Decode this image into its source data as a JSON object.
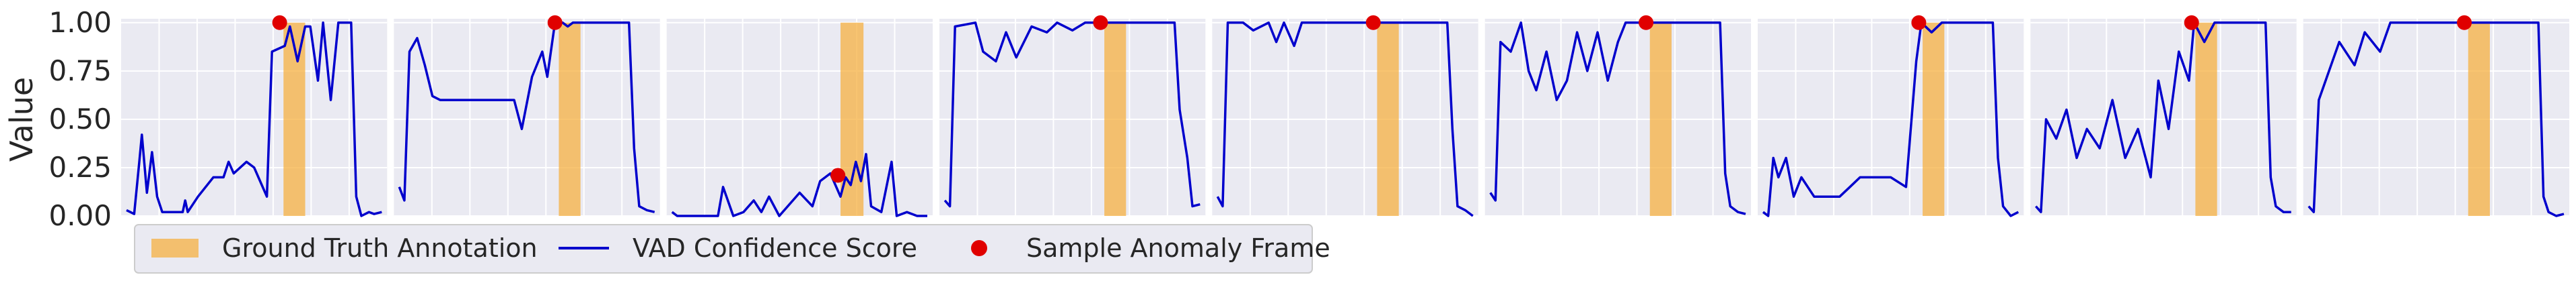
{
  "chart_data": {
    "type": "line",
    "ylabel": "Value",
    "ylim": [
      0,
      1.02
    ],
    "yticks": [
      0.0,
      0.25,
      0.5,
      0.75,
      1.0
    ],
    "ytick_labels": [
      "0.00",
      "0.25",
      "0.50",
      "0.75",
      "1.00"
    ],
    "grid": true,
    "legend_position": "bottom-left",
    "legend": {
      "annotation": "Ground Truth Annotation",
      "line": "VAD Confidence Score",
      "point": "Sample Anomaly Frame"
    },
    "colors": {
      "background": "#eaeaf2",
      "grid": "#ffffff",
      "line": "#0000cc",
      "annotation": "#f5b042",
      "point": "#e00000"
    },
    "panels": [
      {
        "annotation": [
          0.615,
          0.7
        ],
        "point": [
          0.6,
          1.0
        ],
        "line": [
          [
            0.0,
            0.03
          ],
          [
            0.03,
            0.01
          ],
          [
            0.05,
            0.28
          ],
          [
            0.06,
            0.42
          ],
          [
            0.08,
            0.12
          ],
          [
            0.1,
            0.33
          ],
          [
            0.12,
            0.1
          ],
          [
            0.14,
            0.02
          ],
          [
            0.2,
            0.02
          ],
          [
            0.22,
            0.02
          ],
          [
            0.23,
            0.08
          ],
          [
            0.24,
            0.02
          ],
          [
            0.28,
            0.1
          ],
          [
            0.34,
            0.2
          ],
          [
            0.38,
            0.2
          ],
          [
            0.4,
            0.28
          ],
          [
            0.42,
            0.22
          ],
          [
            0.47,
            0.28
          ],
          [
            0.5,
            0.25
          ],
          [
            0.55,
            0.1
          ],
          [
            0.57,
            0.85
          ],
          [
            0.62,
            0.88
          ],
          [
            0.64,
            0.98
          ],
          [
            0.67,
            0.8
          ],
          [
            0.7,
            0.98
          ],
          [
            0.72,
            0.98
          ],
          [
            0.75,
            0.7
          ],
          [
            0.77,
            1.0
          ],
          [
            0.8,
            0.6
          ],
          [
            0.83,
            1.0
          ],
          [
            0.88,
            1.0
          ],
          [
            0.9,
            0.1
          ],
          [
            0.92,
            0.0
          ],
          [
            0.95,
            0.02
          ],
          [
            0.97,
            0.01
          ],
          [
            1.0,
            0.02
          ]
        ]
      },
      {
        "annotation": [
          0.625,
          0.71
        ],
        "point": [
          0.61,
          1.0
        ],
        "line": [
          [
            0.0,
            0.15
          ],
          [
            0.02,
            0.08
          ],
          [
            0.04,
            0.85
          ],
          [
            0.07,
            0.92
          ],
          [
            0.1,
            0.78
          ],
          [
            0.13,
            0.62
          ],
          [
            0.16,
            0.6
          ],
          [
            0.45,
            0.6
          ],
          [
            0.48,
            0.45
          ],
          [
            0.52,
            0.72
          ],
          [
            0.56,
            0.85
          ],
          [
            0.58,
            0.72
          ],
          [
            0.61,
            1.0
          ],
          [
            0.64,
            1.0
          ],
          [
            0.66,
            0.98
          ],
          [
            0.68,
            1.0
          ],
          [
            0.9,
            1.0
          ],
          [
            0.92,
            0.35
          ],
          [
            0.94,
            0.05
          ],
          [
            0.97,
            0.03
          ],
          [
            1.0,
            0.02
          ]
        ]
      },
      {
        "annotation": [
          0.66,
          0.75
        ],
        "point": [
          0.65,
          0.21
        ],
        "line": [
          [
            0.0,
            0.02
          ],
          [
            0.02,
            0.0
          ],
          [
            0.1,
            0.0
          ],
          [
            0.18,
            0.0
          ],
          [
            0.2,
            0.15
          ],
          [
            0.24,
            0.0
          ],
          [
            0.28,
            0.02
          ],
          [
            0.32,
            0.08
          ],
          [
            0.35,
            0.02
          ],
          [
            0.38,
            0.1
          ],
          [
            0.42,
            0.0
          ],
          [
            0.5,
            0.12
          ],
          [
            0.55,
            0.05
          ],
          [
            0.58,
            0.18
          ],
          [
            0.62,
            0.22
          ],
          [
            0.66,
            0.1
          ],
          [
            0.68,
            0.2
          ],
          [
            0.7,
            0.16
          ],
          [
            0.72,
            0.28
          ],
          [
            0.74,
            0.18
          ],
          [
            0.76,
            0.32
          ],
          [
            0.78,
            0.05
          ],
          [
            0.82,
            0.02
          ],
          [
            0.86,
            0.28
          ],
          [
            0.88,
            0.0
          ],
          [
            0.92,
            0.02
          ],
          [
            0.96,
            0.0
          ],
          [
            1.0,
            0.0
          ]
        ]
      },
      {
        "annotation": [
          0.625,
          0.71
        ],
        "point": [
          0.61,
          1.0
        ],
        "line": [
          [
            0.0,
            0.08
          ],
          [
            0.02,
            0.05
          ],
          [
            0.04,
            0.98
          ],
          [
            0.12,
            1.0
          ],
          [
            0.15,
            0.85
          ],
          [
            0.2,
            0.8
          ],
          [
            0.24,
            0.95
          ],
          [
            0.28,
            0.82
          ],
          [
            0.31,
            0.9
          ],
          [
            0.34,
            0.98
          ],
          [
            0.4,
            0.95
          ],
          [
            0.44,
            1.0
          ],
          [
            0.5,
            0.96
          ],
          [
            0.55,
            1.0
          ],
          [
            0.9,
            1.0
          ],
          [
            0.92,
            0.55
          ],
          [
            0.95,
            0.3
          ],
          [
            0.97,
            0.05
          ],
          [
            1.0,
            0.06
          ]
        ]
      },
      {
        "annotation": [
          0.625,
          0.71
        ],
        "point": [
          0.61,
          1.0
        ],
        "line": [
          [
            0.0,
            0.1
          ],
          [
            0.02,
            0.05
          ],
          [
            0.04,
            1.0
          ],
          [
            0.1,
            1.0
          ],
          [
            0.14,
            0.96
          ],
          [
            0.2,
            1.0
          ],
          [
            0.23,
            0.9
          ],
          [
            0.26,
            1.0
          ],
          [
            0.3,
            0.88
          ],
          [
            0.33,
            1.0
          ],
          [
            0.9,
            1.0
          ],
          [
            0.92,
            0.45
          ],
          [
            0.94,
            0.05
          ],
          [
            0.97,
            0.03
          ],
          [
            1.0,
            0.0
          ]
        ]
      },
      {
        "annotation": [
          0.625,
          0.71
        ],
        "point": [
          0.61,
          1.0
        ],
        "line": [
          [
            0.0,
            0.12
          ],
          [
            0.02,
            0.08
          ],
          [
            0.04,
            0.9
          ],
          [
            0.08,
            0.85
          ],
          [
            0.12,
            1.0
          ],
          [
            0.15,
            0.75
          ],
          [
            0.18,
            0.65
          ],
          [
            0.22,
            0.85
          ],
          [
            0.26,
            0.6
          ],
          [
            0.3,
            0.7
          ],
          [
            0.34,
            0.95
          ],
          [
            0.38,
            0.75
          ],
          [
            0.42,
            0.95
          ],
          [
            0.46,
            0.7
          ],
          [
            0.5,
            0.9
          ],
          [
            0.53,
            1.0
          ],
          [
            0.9,
            1.0
          ],
          [
            0.92,
            0.22
          ],
          [
            0.94,
            0.05
          ],
          [
            0.97,
            0.02
          ],
          [
            1.0,
            0.01
          ]
        ]
      },
      {
        "annotation": [
          0.625,
          0.71
        ],
        "point": [
          0.61,
          1.0
        ],
        "line": [
          [
            0.0,
            0.02
          ],
          [
            0.02,
            0.0
          ],
          [
            0.04,
            0.3
          ],
          [
            0.06,
            0.2
          ],
          [
            0.09,
            0.3
          ],
          [
            0.12,
            0.1
          ],
          [
            0.15,
            0.2
          ],
          [
            0.2,
            0.1
          ],
          [
            0.3,
            0.1
          ],
          [
            0.34,
            0.15
          ],
          [
            0.38,
            0.2
          ],
          [
            0.5,
            0.2
          ],
          [
            0.56,
            0.15
          ],
          [
            0.6,
            0.8
          ],
          [
            0.62,
            1.0
          ],
          [
            0.66,
            0.95
          ],
          [
            0.7,
            1.0
          ],
          [
            0.9,
            1.0
          ],
          [
            0.92,
            0.3
          ],
          [
            0.94,
            0.05
          ],
          [
            0.97,
            0.0
          ],
          [
            1.0,
            0.02
          ]
        ]
      },
      {
        "annotation": [
          0.625,
          0.71
        ],
        "point": [
          0.61,
          1.0
        ],
        "line": [
          [
            0.0,
            0.05
          ],
          [
            0.02,
            0.02
          ],
          [
            0.04,
            0.5
          ],
          [
            0.08,
            0.4
          ],
          [
            0.12,
            0.55
          ],
          [
            0.16,
            0.3
          ],
          [
            0.2,
            0.45
          ],
          [
            0.25,
            0.35
          ],
          [
            0.3,
            0.6
          ],
          [
            0.35,
            0.3
          ],
          [
            0.4,
            0.45
          ],
          [
            0.45,
            0.2
          ],
          [
            0.48,
            0.7
          ],
          [
            0.52,
            0.45
          ],
          [
            0.56,
            0.85
          ],
          [
            0.6,
            0.7
          ],
          [
            0.62,
            1.0
          ],
          [
            0.66,
            0.9
          ],
          [
            0.7,
            1.0
          ],
          [
            0.9,
            1.0
          ],
          [
            0.92,
            0.2
          ],
          [
            0.94,
            0.05
          ],
          [
            0.97,
            0.02
          ],
          [
            1.0,
            0.02
          ]
        ]
      },
      {
        "annotation": [
          0.625,
          0.71
        ],
        "point": [
          0.61,
          1.0
        ],
        "line": [
          [
            0.0,
            0.05
          ],
          [
            0.02,
            0.02
          ],
          [
            0.04,
            0.6
          ],
          [
            0.08,
            0.75
          ],
          [
            0.12,
            0.9
          ],
          [
            0.18,
            0.78
          ],
          [
            0.22,
            0.95
          ],
          [
            0.28,
            0.85
          ],
          [
            0.32,
            1.0
          ],
          [
            0.9,
            1.0
          ],
          [
            0.92,
            0.1
          ],
          [
            0.94,
            0.02
          ],
          [
            0.97,
            0.0
          ],
          [
            1.0,
            0.01
          ]
        ]
      }
    ]
  }
}
